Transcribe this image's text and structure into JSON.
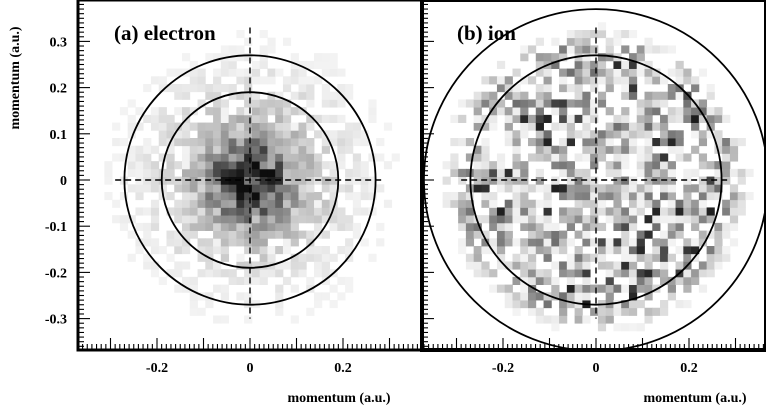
{
  "chart_data": [
    {
      "type": "heatmap",
      "title": "(a) electron",
      "xlabel": "momentum (a.u.)",
      "ylabel": "momentum (a.u.)",
      "xlim": [
        -0.38,
        0.37
      ],
      "ylim": [
        -0.36,
        0.38
      ],
      "x_ticks": [
        "-0.2",
        "0",
        "0.2"
      ],
      "y_ticks": [
        "0.3",
        "0.2",
        "0.1",
        "0",
        "-0.1",
        "-0.2",
        "-0.3"
      ],
      "circle_radii": [
        0.19,
        0.27
      ],
      "crosshair": "dashed lines at x = 0 and y = 0",
      "grid": false,
      "intensity": "peaked at the origin, falling off within radius ~0.2"
    },
    {
      "type": "heatmap",
      "title": "(b) ion",
      "xlabel": "momentum (a.u.)",
      "ylabel": "",
      "xlim": [
        -0.38,
        0.37
      ],
      "ylim": [
        -0.36,
        0.38
      ],
      "x_ticks": [
        "-0.2",
        "0",
        "0.2"
      ],
      "y_ticks": [],
      "circle_radii": [
        0.27,
        0.37
      ],
      "crosshair": "dashed lines at x = 0 and y = 0",
      "grid": false,
      "intensity": "broad, roughly uniform speckled disc filling radius ~0.27"
    }
  ]
}
